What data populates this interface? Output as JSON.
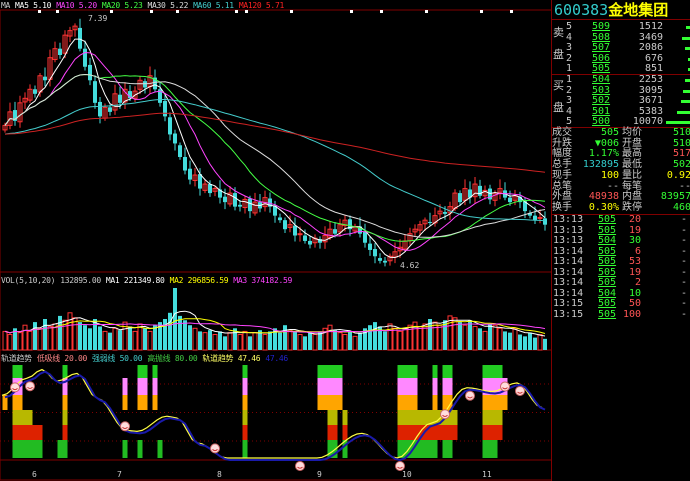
{
  "main_header": [
    {
      "label": "MA",
      "color": "#cccccc"
    },
    {
      "label": "MA5 5.10",
      "color": "#ffffff"
    },
    {
      "label": "MA10 5.20",
      "color": "#ff44ff"
    },
    {
      "label": "MA20 5.23",
      "color": "#44ff44"
    },
    {
      "label": "MA30 5.22",
      "color": "#dddddd"
    },
    {
      "label": "MA60 5.11",
      "color": "#44cccc"
    },
    {
      "label": "MA120 5.71",
      "color": "#ff2222"
    }
  ],
  "price_high_label": "7.39",
  "price_low_label": "4.62",
  "volume_header": [
    {
      "label": "VOL(5,10,20)",
      "color": "#cccccc"
    },
    {
      "label": "132895.00",
      "color": "#cccccc"
    },
    {
      "label": "MA1 221349.80",
      "color": "#ffffff"
    },
    {
      "label": "MA2 296856.59",
      "color": "#ffff00"
    },
    {
      "label": "MA3 374182.59",
      "color": "#ff44ff"
    }
  ],
  "indicator_header": [
    {
      "label": "轨道趋势",
      "color": "#cccccc"
    },
    {
      "label": "低吸线 20.00",
      "color": "#ff8888"
    },
    {
      "label": "强弱线 50.00",
      "color": "#44cccc"
    },
    {
      "label": "高抛线 80.00",
      "color": "#44cc44"
    },
    {
      "label": "轨道趋势 47.46",
      "color": "#ffff66"
    },
    {
      "label": "47.46",
      "color": "#2222cc"
    }
  ],
  "x_axis_labels": [
    {
      "label": "6",
      "i": 6
    },
    {
      "label": "7",
      "i": 23
    },
    {
      "label": "8",
      "i": 43
    },
    {
      "label": "9",
      "i": 63
    },
    {
      "label": "10",
      "i": 80
    },
    {
      "label": "11",
      "i": 96
    }
  ],
  "colors": {
    "up": "#ff3333",
    "down": "#44dddd",
    "border": "#800000",
    "ma5": "#ffffff",
    "ma10": "#ff44ff",
    "ma20": "#44ff44",
    "ma30": "#dddddd",
    "ma60": "#44cccc",
    "ma120": "#cc2222",
    "trend": "#1a1aaa",
    "trend_fast": "#ffff44"
  },
  "chart_data": {
    "type": "candlestick",
    "ylim": [
      4.62,
      7.39
    ],
    "closes": [
      6.2,
      6.35,
      6.25,
      6.45,
      6.5,
      6.6,
      6.55,
      6.75,
      6.7,
      6.95,
      7.05,
      6.98,
      7.2,
      7.25,
      7.3,
      7.05,
      6.85,
      6.7,
      6.45,
      6.3,
      6.4,
      6.35,
      6.55,
      6.45,
      6.6,
      6.5,
      6.58,
      6.7,
      6.62,
      6.75,
      6.6,
      6.45,
      6.3,
      6.1,
      6.0,
      5.85,
      5.7,
      5.6,
      5.65,
      5.5,
      5.55,
      5.45,
      5.5,
      5.4,
      5.35,
      5.45,
      5.3,
      5.3,
      5.38,
      5.25,
      5.35,
      5.28,
      5.4,
      5.3,
      5.2,
      5.15,
      5.05,
      5.1,
      4.98,
      5.0,
      4.92,
      4.88,
      4.95,
      4.9,
      4.98,
      5.05,
      5.0,
      5.1,
      5.15,
      5.05,
      5.08,
      5.0,
      4.9,
      4.82,
      4.75,
      4.7,
      4.68,
      4.75,
      4.8,
      4.85,
      4.92,
      5.0,
      5.05,
      5.1,
      5.15,
      5.12,
      5.2,
      5.25,
      5.22,
      5.3,
      5.45,
      5.35,
      5.5,
      5.4,
      5.55,
      5.42,
      5.48,
      5.38,
      5.45,
      5.5,
      5.4,
      5.35,
      5.42,
      5.35,
      5.25,
      5.2,
      5.15,
      5.18,
      5.1
    ],
    "volumes_10k": [
      30,
      25,
      35,
      28,
      40,
      30,
      45,
      35,
      50,
      38,
      42,
      55,
      48,
      60,
      52,
      45,
      40,
      35,
      50,
      38,
      30,
      28,
      35,
      32,
      45,
      38,
      30,
      42,
      35,
      30,
      40,
      45,
      50,
      60,
      100,
      55,
      48,
      40,
      35,
      30,
      28,
      32,
      25,
      30,
      22,
      28,
      35,
      25,
      30,
      22,
      28,
      32,
      25,
      30,
      35,
      28,
      40,
      32,
      30,
      25,
      22,
      28,
      25,
      30,
      35,
      40,
      32,
      28,
      25,
      30,
      22,
      28,
      35,
      40,
      45,
      38,
      30,
      42,
      35,
      30,
      35,
      40,
      45,
      38,
      42,
      50,
      45,
      40,
      48,
      55,
      52,
      45,
      40,
      48,
      38,
      35,
      30,
      42,
      40,
      35,
      30,
      28,
      35,
      25,
      22,
      28,
      20,
      25,
      18
    ],
    "trend_points": [
      [
        0,
        66
      ],
      [
        5,
        84
      ],
      [
        8,
        93
      ],
      [
        11,
        81
      ],
      [
        15,
        89
      ],
      [
        19,
        63
      ],
      [
        25,
        29
      ],
      [
        27,
        28
      ],
      [
        33,
        44
      ],
      [
        35,
        42
      ],
      [
        39,
        16
      ],
      [
        45,
        0
      ],
      [
        55,
        0
      ],
      [
        63,
        0
      ],
      [
        72,
        26
      ],
      [
        79,
        0
      ],
      [
        86,
        37
      ],
      [
        93,
        74
      ],
      [
        98,
        70
      ],
      [
        103,
        79
      ],
      [
        108,
        53
      ]
    ],
    "signal_bars": [
      [
        0,
        2,
        2
      ],
      [
        2,
        0,
        5
      ],
      [
        3,
        0,
        5
      ],
      [
        4,
        3,
        5
      ],
      [
        5,
        3,
        5
      ],
      [
        6,
        4,
        5
      ],
      [
        7,
        4,
        5
      ],
      [
        11,
        5,
        5
      ],
      [
        12,
        0,
        5
      ],
      [
        24,
        1,
        2
      ],
      [
        24,
        5,
        5
      ],
      [
        27,
        0,
        2
      ],
      [
        28,
        0,
        2
      ],
      [
        27,
        5,
        5
      ],
      [
        30,
        0,
        2
      ],
      [
        31,
        5,
        5
      ],
      [
        48,
        0,
        5
      ],
      [
        63,
        0,
        2
      ],
      [
        64,
        0,
        2
      ],
      [
        65,
        0,
        5
      ],
      [
        66,
        0,
        5
      ],
      [
        67,
        0,
        2
      ],
      [
        68,
        3,
        5
      ],
      [
        79,
        0,
        5
      ],
      [
        80,
        0,
        5
      ],
      [
        81,
        0,
        5
      ],
      [
        82,
        0,
        5
      ],
      [
        83,
        3,
        5
      ],
      [
        84,
        3,
        5
      ],
      [
        85,
        3,
        5
      ],
      [
        86,
        0,
        5
      ],
      [
        87,
        3,
        4
      ],
      [
        88,
        0,
        5
      ],
      [
        89,
        0,
        5
      ],
      [
        90,
        3,
        4
      ],
      [
        96,
        0,
        5
      ],
      [
        97,
        0,
        5
      ],
      [
        98,
        0,
        5
      ],
      [
        99,
        0,
        4
      ],
      [
        100,
        1,
        2
      ]
    ],
    "levels": [
      20,
      50,
      80
    ]
  },
  "panel": {
    "code": "600383",
    "name": "金地集团",
    "sell_label": [
      "卖",
      "盘"
    ],
    "buy_label": [
      "买",
      "盘"
    ],
    "sell": [
      {
        "n": "5",
        "p": "509",
        "v": "1512",
        "bar": 15
      },
      {
        "n": "4",
        "p": "508",
        "v": "3469",
        "bar": 34
      },
      {
        "n": "3",
        "p": "507",
        "v": "2086",
        "bar": 21
      },
      {
        "n": "2",
        "p": "506",
        "v": "676",
        "bar": 7
      },
      {
        "n": "1",
        "p": "505",
        "v": "851",
        "bar": 8
      }
    ],
    "buy": [
      {
        "n": "1",
        "p": "504",
        "v": "2253",
        "bar": 22
      },
      {
        "n": "2",
        "p": "503",
        "v": "3095",
        "bar": 31
      },
      {
        "n": "3",
        "p": "502",
        "v": "3671",
        "bar": 37
      },
      {
        "n": "4",
        "p": "501",
        "v": "5383",
        "bar": 54
      },
      {
        "n": "5",
        "p": "500",
        "v": "10070",
        "bar": 100
      }
    ],
    "stats": [
      {
        "k1": "成交",
        "v1": "505",
        "c1": "grn",
        "k2": "均价",
        "v2": "510",
        "c2": "grn"
      },
      {
        "k1": "升跌",
        "v1": "▼006",
        "c1": "grn",
        "k2": "开盘",
        "v2": "510",
        "c2": "grn"
      },
      {
        "k1": "幅度",
        "v1": "1.17%",
        "c1": "grn",
        "k2": "最高",
        "v2": "517",
        "c2": "red"
      },
      {
        "k1": "总手",
        "v1": "132895",
        "c1": "cya",
        "k2": "最低",
        "v2": "502",
        "c2": "grn"
      },
      {
        "k1": "现手",
        "v1": "100",
        "c1": "yel",
        "k2": "量比",
        "v2": "0.92",
        "c2": "yel"
      },
      {
        "k1": "总笔",
        "v1": "--",
        "c1": "wht",
        "k2": "每笔",
        "v2": "--",
        "c2": "wht"
      },
      {
        "k1": "外盘",
        "v1": "48938",
        "c1": "red",
        "k2": "内盘",
        "v2": "83957",
        "c2": "grn"
      },
      {
        "k1": "换手",
        "v1": "0.30%",
        "c1": "yel",
        "k2": "跌停",
        "v2": "460",
        "c2": "grn"
      }
    ],
    "ticks": [
      {
        "t": "13:13",
        "p": "505",
        "v": "20",
        "c": "red"
      },
      {
        "t": "13:13",
        "p": "505",
        "v": "19",
        "c": "red"
      },
      {
        "t": "13:13",
        "p": "504",
        "v": "30",
        "c": "grn"
      },
      {
        "t": "13:14",
        "p": "505",
        "v": "6",
        "c": "red"
      },
      {
        "t": "13:14",
        "p": "505",
        "v": "53",
        "c": "red"
      },
      {
        "t": "13:14",
        "p": "505",
        "v": "19",
        "c": "red"
      },
      {
        "t": "13:14",
        "p": "505",
        "v": "2",
        "c": "red"
      },
      {
        "t": "13:14",
        "p": "504",
        "v": "10",
        "c": "grn"
      },
      {
        "t": "13:15",
        "p": "505",
        "v": "50",
        "c": "red"
      },
      {
        "t": "13:15",
        "p": "505",
        "v": "100",
        "c": "red"
      }
    ]
  }
}
